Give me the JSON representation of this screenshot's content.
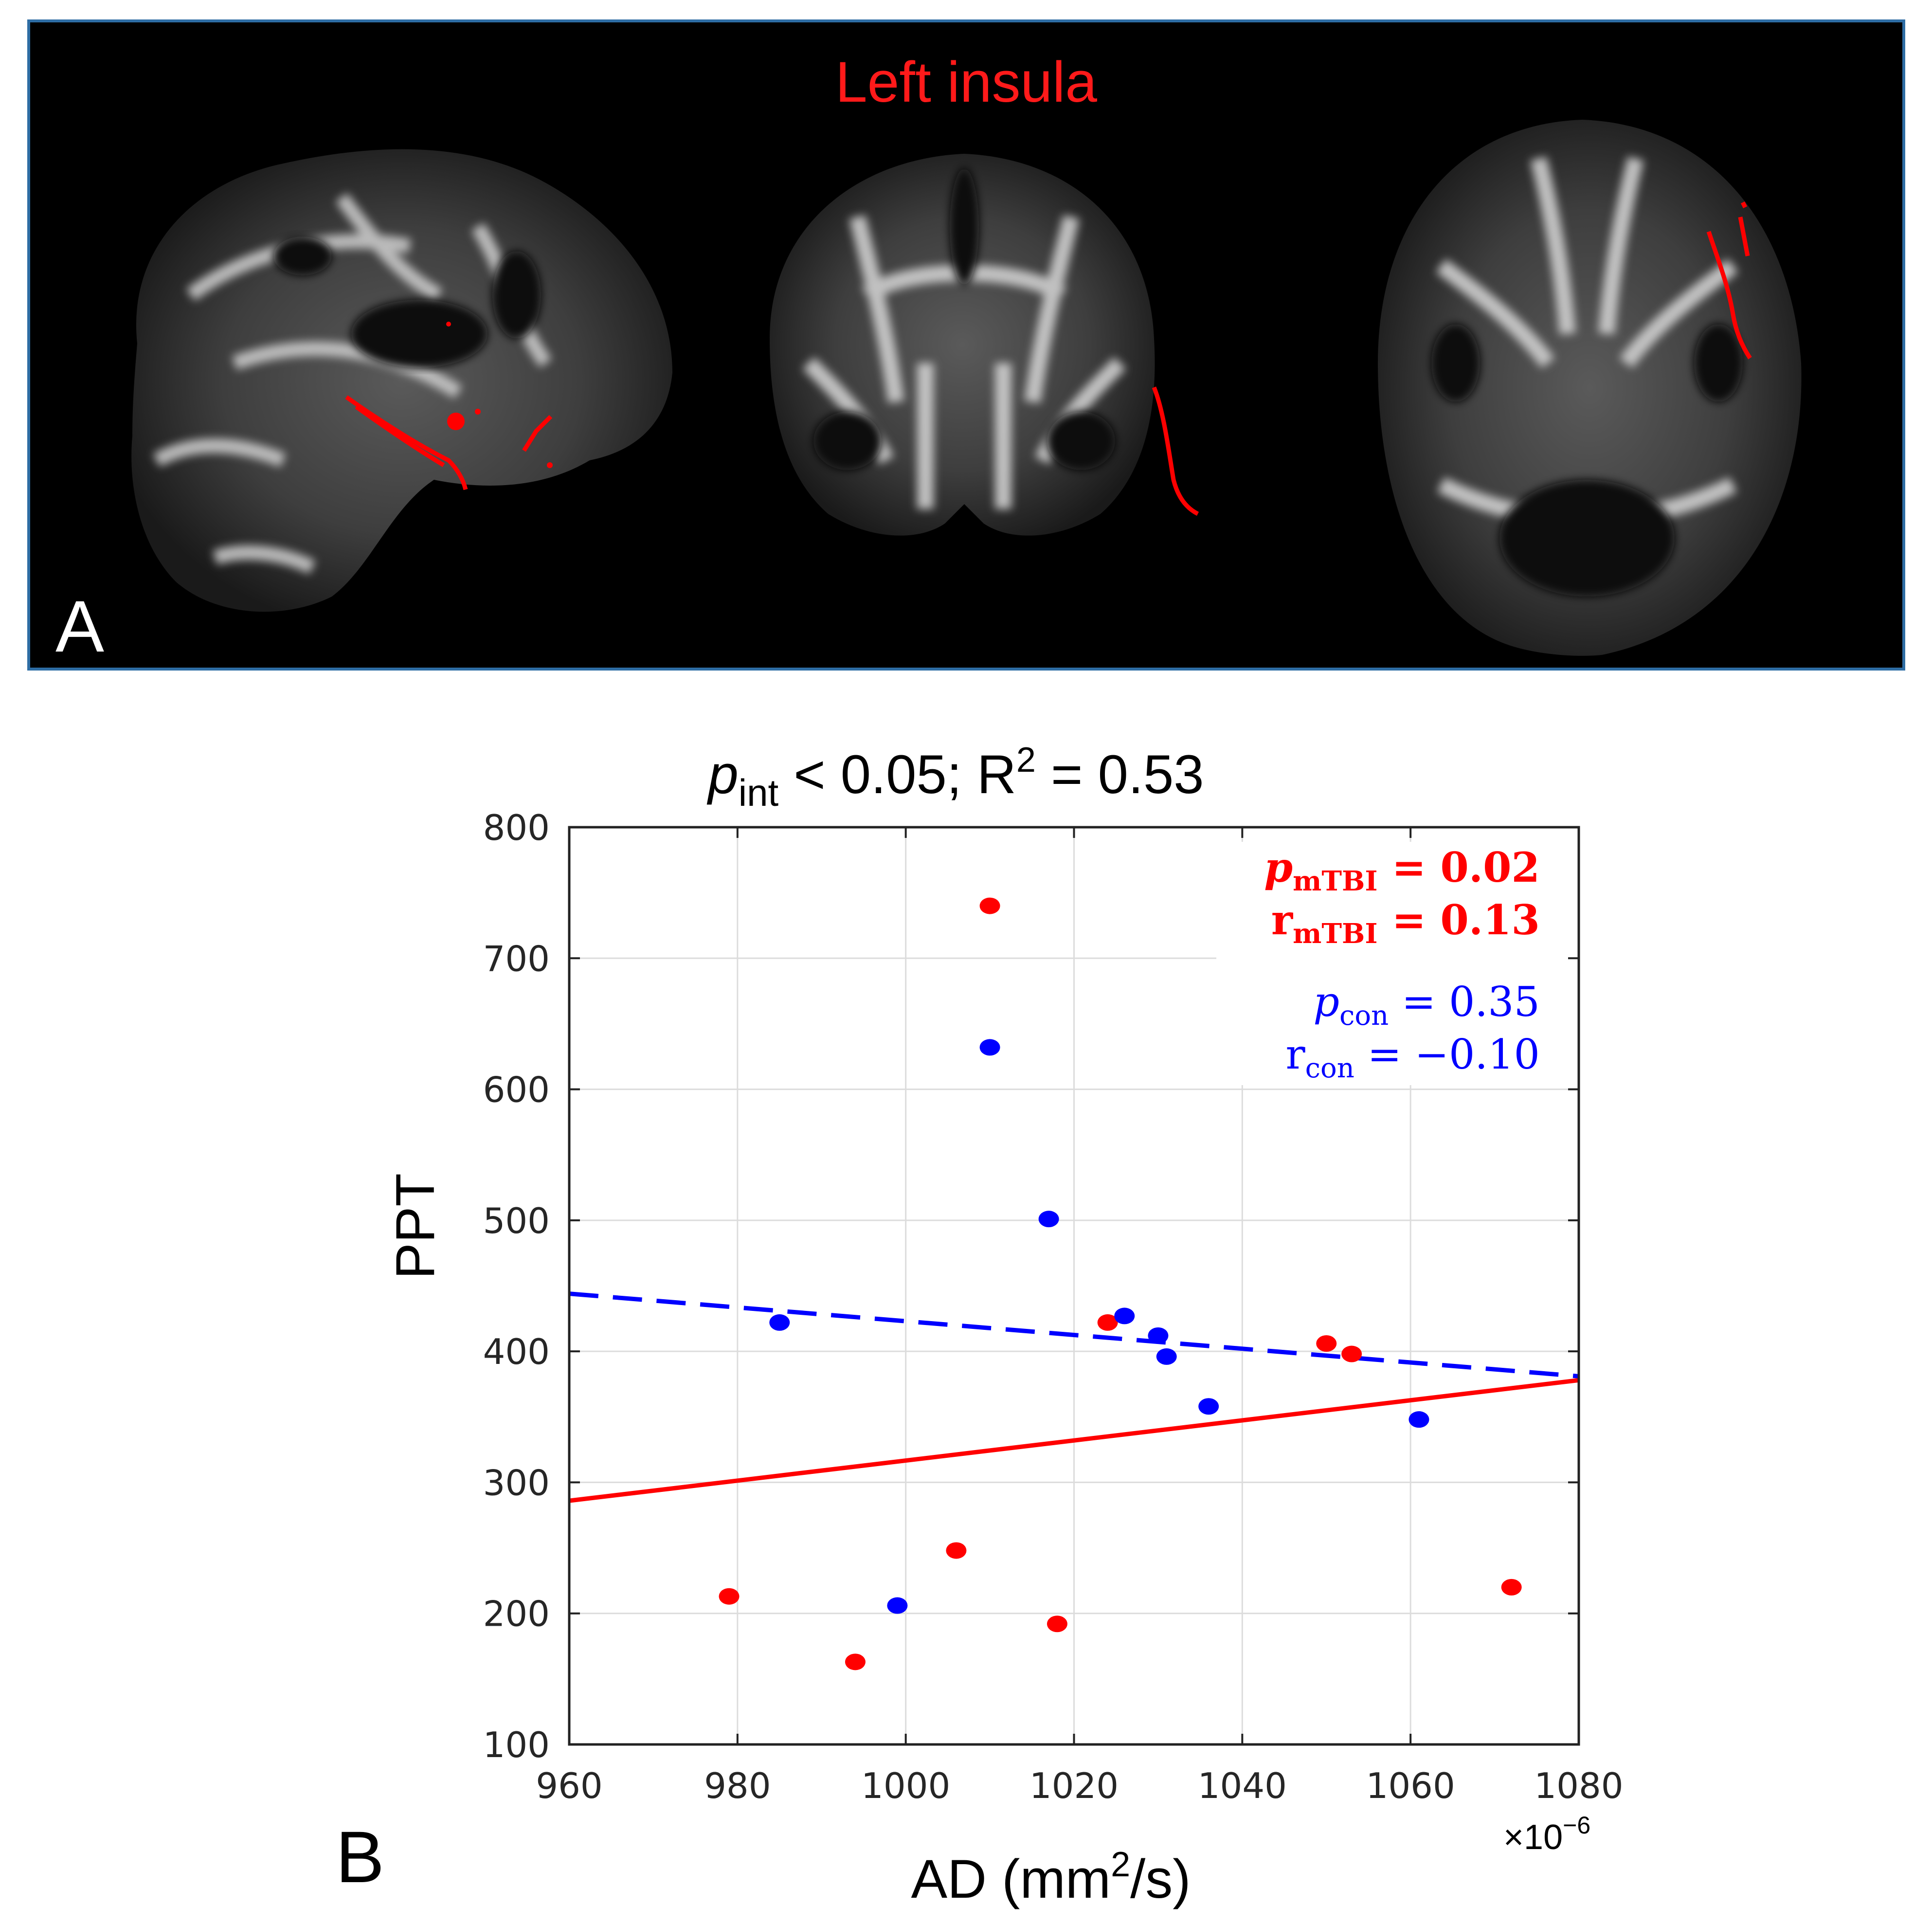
{
  "panel_a": {
    "label": "A",
    "title": "Left insula"
  },
  "panel_b": {
    "label": "B",
    "title": {
      "p": "p",
      "sub": "int",
      "rest": " < 0.05;  R",
      "sup": "2",
      "tail": " = 0.53"
    },
    "stats_mtbi": {
      "p_symbol": "p",
      "p_sub": "mTBI",
      "p_value": " = 0.02",
      "r_symbol": "r",
      "r_sub": "mTBI",
      "r_value": " = 0.13"
    },
    "stats_con": {
      "p_symbol": "p",
      "p_sub": "con",
      "p_value": " = 0.35",
      "r_symbol": "r",
      "r_sub": "con",
      "r_value": " = −0.10"
    },
    "exponent": {
      "base": "×10",
      "power": "−6"
    },
    "xlabel": {
      "main": "AD (mm",
      "sup": "2",
      "tail": "/s)"
    },
    "colors": {
      "mtbi": "#ff0000",
      "con": "#0000ff",
      "grid": "#dcdcdc"
    }
  },
  "chart_data": {
    "type": "scatter",
    "title": "p_int < 0.05;  R^2 = 0.53",
    "xlabel": "AD (mm^2/s)",
    "ylabel": "PPT",
    "xlim": [
      960,
      1080
    ],
    "ylim": [
      100,
      800
    ],
    "xticks": [
      960,
      980,
      1000,
      1020,
      1040,
      1060,
      1080
    ],
    "yticks": [
      100,
      200,
      300,
      400,
      500,
      600,
      700,
      800
    ],
    "grid": true,
    "series": [
      {
        "name": "mTBI",
        "color": "#ff0000",
        "points": [
          [
            1010,
            740
          ],
          [
            979,
            213
          ],
          [
            994,
            163
          ],
          [
            1006,
            248
          ],
          [
            1018,
            192
          ],
          [
            1024,
            422
          ],
          [
            1050,
            406
          ],
          [
            1053,
            398
          ],
          [
            1072,
            220
          ]
        ],
        "fit": {
          "style": "solid",
          "x": [
            960,
            1080
          ],
          "y": [
            286,
            378
          ]
        }
      },
      {
        "name": "con",
        "color": "#0000ff",
        "points": [
          [
            1010,
            632
          ],
          [
            1017,
            501
          ],
          [
            985,
            422
          ],
          [
            999,
            206
          ],
          [
            1026,
            427
          ],
          [
            1030,
            412
          ],
          [
            1031,
            396
          ],
          [
            1036,
            358
          ],
          [
            1061,
            348
          ]
        ],
        "fit": {
          "style": "dashed",
          "x": [
            960,
            1080
          ],
          "y": [
            444,
            381
          ]
        }
      }
    ]
  }
}
